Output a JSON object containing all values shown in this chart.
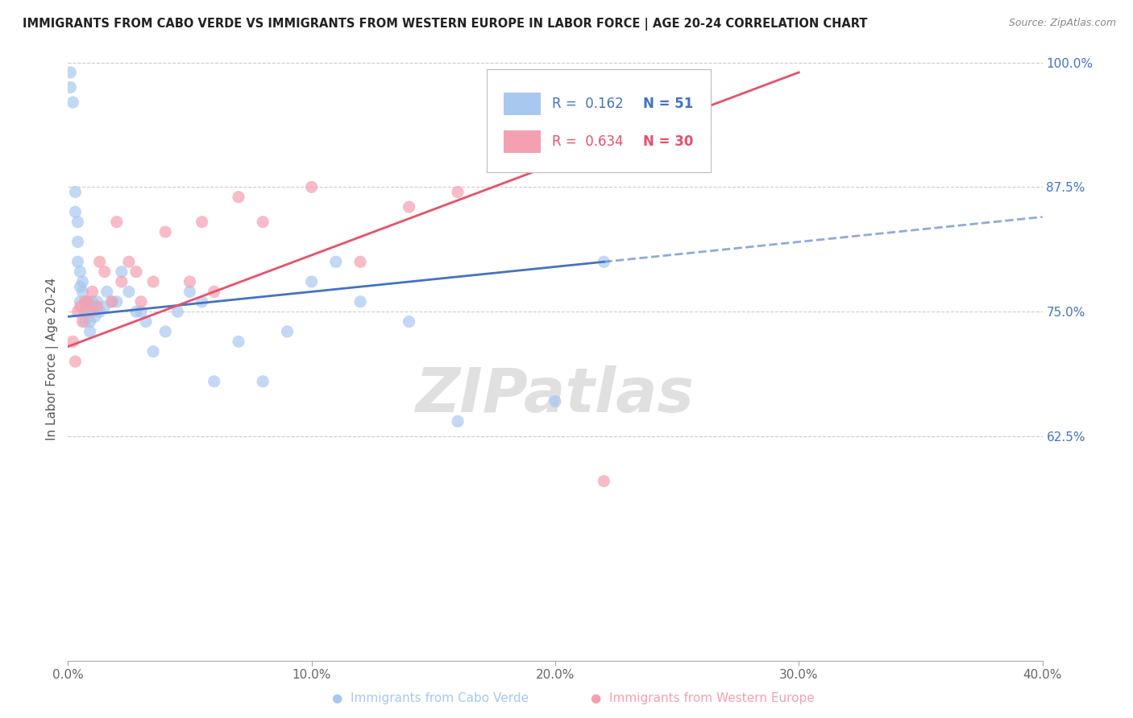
{
  "title": "IMMIGRANTS FROM CABO VERDE VS IMMIGRANTS FROM WESTERN EUROPE IN LABOR FORCE | AGE 20-24 CORRELATION CHART",
  "source_text": "Source: ZipAtlas.com",
  "ylabel": "In Labor Force | Age 20-24",
  "xmin": 0.0,
  "xmax": 0.4,
  "ymin": 0.4,
  "ymax": 1.005,
  "yticks": [
    0.625,
    0.75,
    0.875,
    1.0
  ],
  "ytick_labels": [
    "62.5%",
    "75.0%",
    "87.5%",
    "100.0%"
  ],
  "xticks": [
    0.0,
    0.1,
    0.2,
    0.3,
    0.4
  ],
  "xtick_labels": [
    "0.0%",
    "10.0%",
    "20.0%",
    "30.0%",
    "40.0%"
  ],
  "r_blue": 0.162,
  "n_blue": 51,
  "r_pink": 0.634,
  "n_pink": 30,
  "blue_color": "#A8C8F0",
  "pink_color": "#F4A0B0",
  "trend_blue": "#4472C4",
  "trend_pink": "#E8506A",
  "watermark": "ZIPatlas",
  "watermark_color": "#E0E0E0",
  "blue_scatter_x": [
    0.001,
    0.001,
    0.002,
    0.003,
    0.003,
    0.004,
    0.004,
    0.004,
    0.005,
    0.005,
    0.005,
    0.006,
    0.006,
    0.007,
    0.007,
    0.007,
    0.008,
    0.008,
    0.009,
    0.009,
    0.01,
    0.01,
    0.011,
    0.011,
    0.012,
    0.013,
    0.015,
    0.016,
    0.018,
    0.02,
    0.022,
    0.025,
    0.028,
    0.03,
    0.032,
    0.035,
    0.04,
    0.045,
    0.05,
    0.055,
    0.06,
    0.07,
    0.08,
    0.09,
    0.1,
    0.11,
    0.12,
    0.14,
    0.16,
    0.2,
    0.22
  ],
  "blue_scatter_y": [
    0.99,
    0.975,
    0.96,
    0.87,
    0.85,
    0.84,
    0.82,
    0.8,
    0.79,
    0.775,
    0.76,
    0.78,
    0.77,
    0.76,
    0.75,
    0.74,
    0.76,
    0.75,
    0.74,
    0.73,
    0.76,
    0.75,
    0.755,
    0.745,
    0.76,
    0.75,
    0.755,
    0.77,
    0.76,
    0.76,
    0.79,
    0.77,
    0.75,
    0.75,
    0.74,
    0.71,
    0.73,
    0.75,
    0.77,
    0.76,
    0.68,
    0.72,
    0.68,
    0.73,
    0.78,
    0.8,
    0.76,
    0.74,
    0.64,
    0.66,
    0.8
  ],
  "pink_scatter_x": [
    0.002,
    0.003,
    0.004,
    0.005,
    0.006,
    0.007,
    0.008,
    0.009,
    0.01,
    0.012,
    0.013,
    0.015,
    0.018,
    0.02,
    0.022,
    0.025,
    0.028,
    0.03,
    0.035,
    0.04,
    0.05,
    0.055,
    0.06,
    0.07,
    0.08,
    0.1,
    0.12,
    0.14,
    0.16,
    0.22
  ],
  "pink_scatter_y": [
    0.72,
    0.7,
    0.75,
    0.755,
    0.74,
    0.76,
    0.76,
    0.75,
    0.77,
    0.755,
    0.8,
    0.79,
    0.76,
    0.84,
    0.78,
    0.8,
    0.79,
    0.76,
    0.78,
    0.83,
    0.78,
    0.84,
    0.77,
    0.865,
    0.84,
    0.875,
    0.8,
    0.855,
    0.87,
    0.58
  ],
  "blue_trend_x0": 0.0,
  "blue_trend_x1": 0.22,
  "blue_trend_y0": 0.745,
  "blue_trend_y1": 0.8,
  "pink_trend_x0": 0.0,
  "pink_trend_x1": 0.3,
  "pink_trend_y0": 0.715,
  "pink_trend_y1": 0.99
}
